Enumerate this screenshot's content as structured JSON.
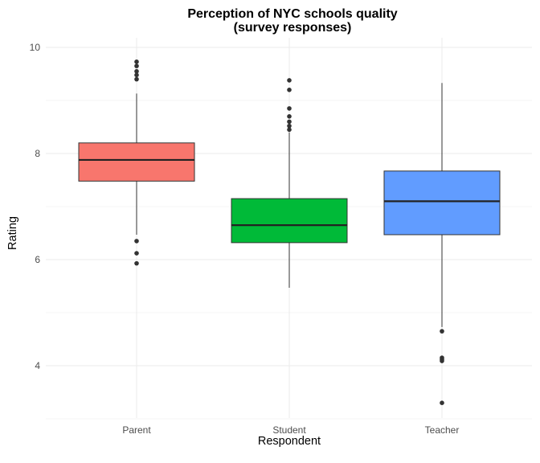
{
  "chart_data": {
    "type": "box",
    "title": "Perception of NYC schools quality",
    "subtitle": "(survey responses)",
    "xlabel": "Respondent",
    "ylabel": "Rating",
    "ylim": [
      3.0,
      10.0
    ],
    "y_ticks": [
      "4",
      "6",
      "8",
      "10"
    ],
    "grid": true,
    "legend": "none",
    "categories": [
      "Parent",
      "Student",
      "Teacher"
    ],
    "series": [
      {
        "category": "Parent",
        "color": "#F8766D",
        "whisker_low": 6.47,
        "q1": 7.48,
        "median": 7.88,
        "q3": 8.2,
        "whisker_high": 9.13,
        "outliers": [
          9.73,
          9.65,
          9.55,
          9.48,
          9.4,
          6.35,
          6.12,
          5.93
        ]
      },
      {
        "category": "Student",
        "color": "#00BA38",
        "whisker_low": 5.47,
        "q1": 6.32,
        "median": 6.65,
        "q3": 7.15,
        "whisker_high": 8.4,
        "outliers": [
          9.38,
          9.2,
          8.85,
          8.7,
          8.6,
          8.52,
          8.45
        ]
      },
      {
        "category": "Teacher",
        "color": "#619CFF",
        "whisker_low": 4.73,
        "q1": 6.47,
        "median": 7.1,
        "q3": 7.67,
        "whisker_high": 9.33,
        "outliers": [
          4.65,
          4.15,
          4.12,
          4.09,
          3.3
        ]
      }
    ]
  }
}
